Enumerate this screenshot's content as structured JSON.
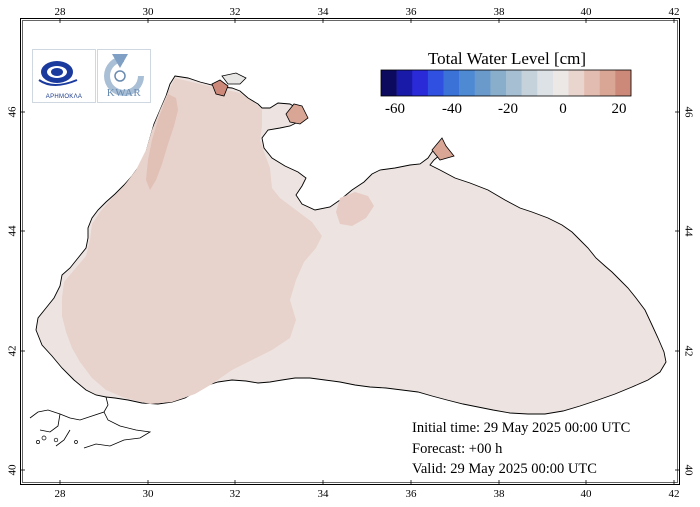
{
  "map": {
    "axes": {
      "x_ticks": [
        "28",
        "30",
        "32",
        "34",
        "36",
        "38",
        "40",
        "42"
      ],
      "y_ticks": [
        "40",
        "42",
        "44",
        "46"
      ]
    },
    "legend": {
      "title": "Total Water Level [cm]",
      "tick_labels": [
        "-60",
        "-40",
        "-20",
        "0",
        "20"
      ],
      "colors": [
        "#0b0a5e",
        "#1a1aa8",
        "#2a2ad8",
        "#2f50e0",
        "#3a72d8",
        "#4e8ad4",
        "#6a9acc",
        "#89aecc",
        "#a6bfd2",
        "#c5d1db",
        "#dde2e6",
        "#ece8e6",
        "#ead4ce",
        "#e3bcb1",
        "#d9a595",
        "#cc8878"
      ]
    },
    "logos": {
      "logo1_name": "agency-logo",
      "logo1_text": "ΑΡΗΜΟΚΛΑ",
      "logo2_name": "kwar-logo",
      "logo2_text": "KWAR"
    },
    "colors": {
      "sea_base": "#ede4e1",
      "sea_warm": "#e8d2cc",
      "sea_warmer": "#e1c0b6",
      "coast": "#000000"
    }
  },
  "forecast": {
    "initial_time": "Initial time: 29 May 2025 00:00 UTC",
    "forecast_hours": "Forecast: +00 h",
    "valid": "Valid: 29 May 2025 00:00 UTC"
  }
}
